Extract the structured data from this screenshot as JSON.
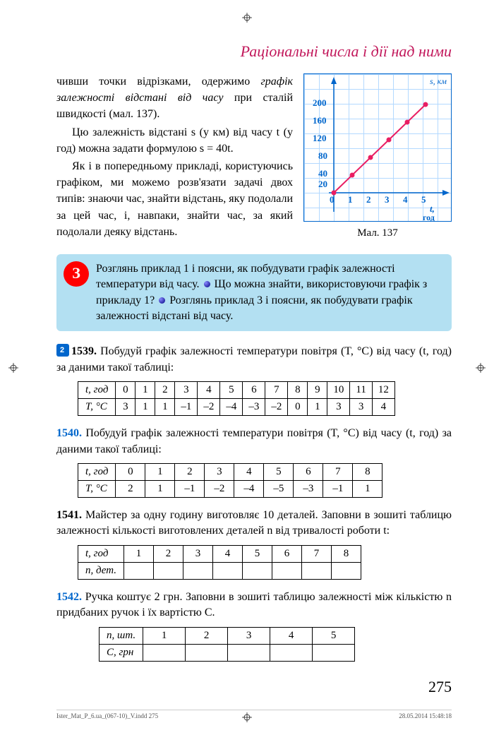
{
  "header": "Раціональні числа і дії над ними",
  "para1a": "чивши точки відрізками, одержимо",
  "para1b": "графік залежності відстані від часу",
  "para1c": "при сталій швидкості (мал. 137).",
  "para2": "Цю залежність відстані s (у км) від часу t (у год) можна задати формулою s = 40t.",
  "para3": "Як і в попередньому прикладі, користуючись графіком, ми можемо розв'язати задачі двох типів: знаючи час, знайти відстань, яку подолали за цей час, і, навпаки, знайти час, за який подолали деяку відстань.",
  "chart": {
    "ylabel": "s, км",
    "xlabel_t": "t,",
    "xlabel_unit": "год",
    "yticks": [
      "200",
      "160",
      "120",
      "80",
      "40",
      "20"
    ],
    "xticks": [
      "0",
      "1",
      "2",
      "3",
      "4",
      "5"
    ],
    "points": [
      [
        0,
        0
      ],
      [
        1,
        40
      ],
      [
        2,
        80
      ],
      [
        3,
        120
      ],
      [
        4,
        160
      ],
      [
        5,
        200
      ]
    ],
    "line_color": "#e91e63",
    "grid_color": "#b3d9ff",
    "axis_color": "#0066cc",
    "caption": "Мал. 137"
  },
  "bluebox": {
    "icon_text": "З",
    "t1": "Розглянь приклад 1 і поясни, як побудувати гра­фік залежності температури від часу.",
    "t2": "Що мож­на знайти, використовуючи графік з прикладу 1?",
    "t3": "Розглянь приклад 3 і поясни, як побудувати гра­фік залежності відстані від часу."
  },
  "task1539": {
    "num": "1539.",
    "text": "Побудуй графік залежності температури повітря (T, °С) від часу (t, год) за даними такої таблиці:",
    "row1_head": "t, год",
    "row2_head": "T, °С",
    "row1": [
      "0",
      "1",
      "2",
      "3",
      "4",
      "5",
      "6",
      "7",
      "8",
      "9",
      "10",
      "11",
      "12"
    ],
    "row2": [
      "3",
      "1",
      "1",
      "–1",
      "–2",
      "–4",
      "–3",
      "–2",
      "0",
      "1",
      "3",
      "3",
      "4"
    ]
  },
  "task1540": {
    "num": "1540.",
    "text": "Побудуй графік залежності температури повітря (T, °С) від часу (t, год) за даними такої таблиці:",
    "row1_head": "t, год",
    "row2_head": "T, °С",
    "row1": [
      "0",
      "1",
      "2",
      "3",
      "4",
      "5",
      "6",
      "7",
      "8"
    ],
    "row2": [
      "2",
      "1",
      "–1",
      "–2",
      "–4",
      "–5",
      "–3",
      "–1",
      "1"
    ]
  },
  "task1541": {
    "num": "1541.",
    "text": "Майстер за одну годину виготовляє 10 деталей. За­повни в зошиті таблицю залежності кількості виготовле­них деталей n від тривалості роботи t:",
    "row1_head": "t, год",
    "row2_head": "n, дет.",
    "row1": [
      "1",
      "2",
      "3",
      "4",
      "5",
      "6",
      "7",
      "8"
    ],
    "row2": [
      "",
      "",
      "",
      "",
      "",
      "",
      "",
      ""
    ]
  },
  "task1542": {
    "num": "1542.",
    "text": "Ручка коштує 2 грн. Заповни в зошиті таблицю за­лежності між кількістю n придбаних ручок і їх вартістю С.",
    "row1_head": "n, шт.",
    "row2_head": "С, грн",
    "row1": [
      "1",
      "2",
      "3",
      "4",
      "5"
    ],
    "row2": [
      "",
      "",
      "",
      "",
      ""
    ]
  },
  "page_num": "275",
  "footer_left": "Ister_Mat_P_6.ua_(067-10)_V.indd   275",
  "footer_right": "28.05.2014   15:48:18"
}
